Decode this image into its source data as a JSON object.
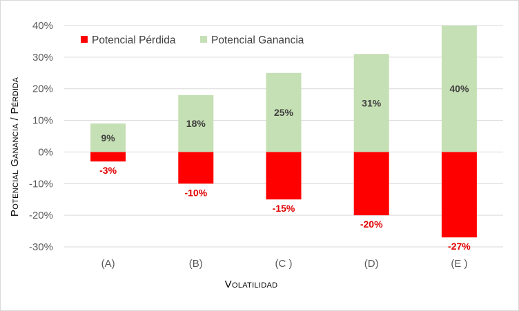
{
  "chart_data": {
    "type": "bar",
    "stacked": true,
    "categories": [
      "(A)",
      "(B)",
      "(C )",
      "(D)",
      "(E )"
    ],
    "series": [
      {
        "name": "Potencial Pérdida",
        "values": [
          -3,
          -10,
          -15,
          -20,
          -27
        ],
        "labels": [
          "-3%",
          "-10%",
          "-15%",
          "-20%",
          "-27%"
        ],
        "color": "#ff0000"
      },
      {
        "name": "Potencial Ganancia",
        "values": [
          9,
          18,
          25,
          31,
          40
        ],
        "labels": [
          "9%",
          "18%",
          "25%",
          "31%",
          "40%"
        ],
        "color": "#c5e0b4"
      }
    ],
    "yticks": [
      "40%",
      "30%",
      "20%",
      "10%",
      "0%",
      "-10%",
      "-20%",
      "-30%"
    ],
    "ylim": [
      -30,
      40
    ],
    "xlabel": "Volatilidad",
    "ylabel": "Potencial Ganancia / Pérdida",
    "grid": true,
    "legend_position": "top-left",
    "negative_label_color": "#e00000",
    "positive_label_color": "#404040",
    "gridline_color": "#d9d9d9"
  }
}
